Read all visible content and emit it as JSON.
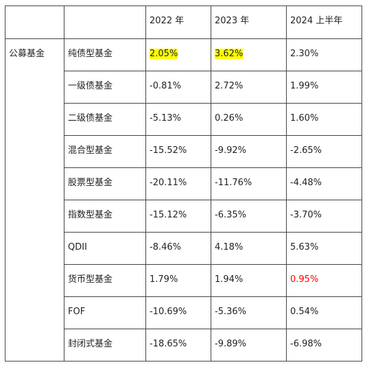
{
  "header": [
    "",
    "",
    "2022 年",
    "2023 年",
    "2024 上半年"
  ],
  "group_label": "公募基金",
  "rows": [
    {
      "name": "纯债型基金",
      "v2022": "2.05%",
      "v2023": "3.62%",
      "v2024h1": "2.30%"
    },
    {
      "name": "一级债基金",
      "v2022": "-0.81%",
      "v2023": "2.72%",
      "v2024h1": "1.99%"
    },
    {
      "name": "二级债基金",
      "v2022": "-5.13%",
      "v2023": "0.26%",
      "v2024h1": "1.60%"
    },
    {
      "name": "混合型基金",
      "v2022": "-15.52%",
      "v2023": "-9.92%",
      "v2024h1": "-2.65%"
    },
    {
      "name": "股票型基金",
      "v2022": "-20.11%",
      "v2023": "-11.76%",
      "v2024h1": "-4.48%"
    },
    {
      "name": "指数型基金",
      "v2022": "-15.12%",
      "v2023": "-6.35%",
      "v2024h1": "-3.70%"
    },
    {
      "name": "QDII",
      "v2022": "-8.46%",
      "v2023": "4.18%",
      "v2024h1": "5.63%"
    },
    {
      "name": "货币型基金",
      "v2022": "1.79%",
      "v2023": "1.94%",
      "v2024h1": "0.95%"
    },
    {
      "name": "FOF",
      "v2022": "-10.69%",
      "v2023": "-5.36%",
      "v2024h1": "0.54%"
    },
    {
      "name": "封闭式基金",
      "v2022": "-18.65%",
      "v2023": "-9.89%",
      "v2024h1": "-6.98%"
    }
  ],
  "highlight_color": "#ffff00",
  "emphasis_color": "#ff0000"
}
